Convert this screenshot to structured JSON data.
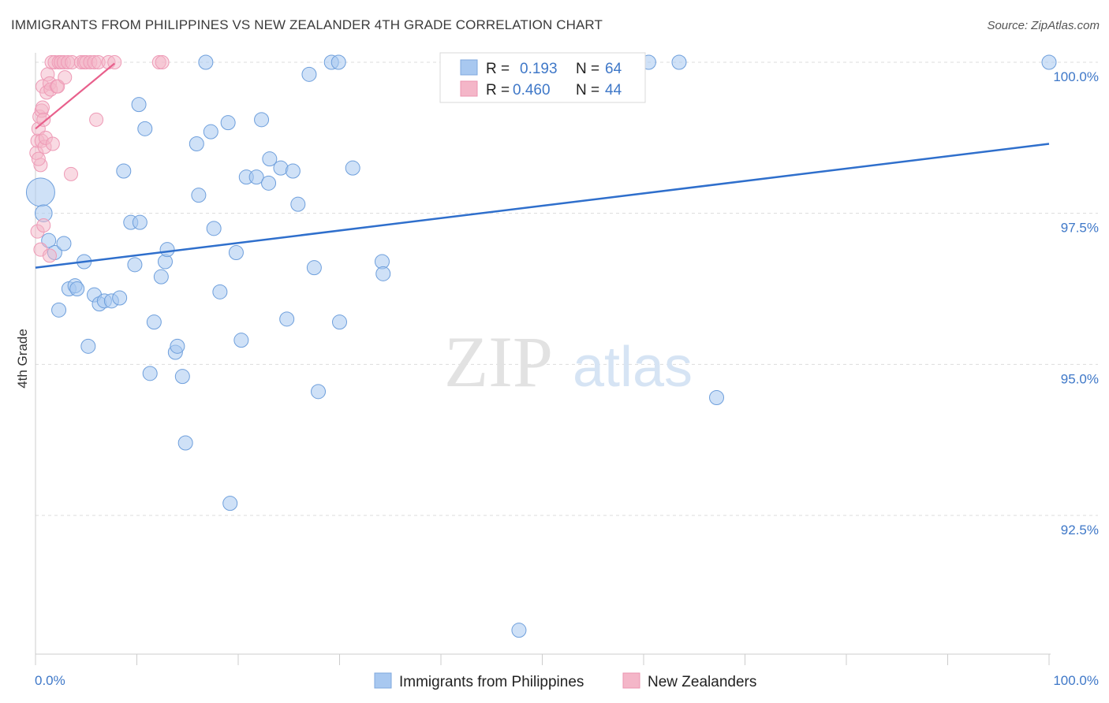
{
  "title": "IMMIGRANTS FROM PHILIPPINES VS NEW ZEALANDER 4TH GRADE CORRELATION CHART",
  "source": "Source: ZipAtlas.com",
  "watermark": {
    "zip": "ZIP",
    "atlas": "atlas"
  },
  "stats_legend": {
    "r_label": "R =",
    "n_label": "N =",
    "rows": [
      {
        "r": "0.193",
        "n": "64",
        "color": "#a8c8f0"
      },
      {
        "r": "0.460",
        "n": "44",
        "color": "#f4b6c8"
      }
    ]
  },
  "bottom_legend": [
    {
      "label": "Immigrants from Philippines",
      "color": "#a8c8f0"
    },
    {
      "label": "New Zealanders",
      "color": "#f4b6c8"
    }
  ],
  "chart_data": {
    "type": "scatter",
    "title": "IMMIGRANTS FROM PHILIPPINES VS NEW ZEALANDER 4TH GRADE CORRELATION CHART",
    "xlabel": "",
    "ylabel": "4th Grade",
    "xlim": [
      0,
      100
    ],
    "ylim": [
      90.5,
      100.25
    ],
    "x_tick_labels": [
      "0.0%",
      "100.0%"
    ],
    "y_ticks": [
      100.0,
      97.5,
      95.0,
      92.5
    ],
    "y_tick_labels": [
      "100.0%",
      "97.5%",
      "95.0%",
      "92.5%"
    ],
    "grid": true,
    "colors": {
      "blue_fill": "#a8c8f0",
      "blue_line": "#2f6fcc",
      "pink_fill": "#f4b6c8",
      "pink_line": "#e8608c",
      "tick_text": "#3f78c8"
    },
    "series": [
      {
        "name": "Immigrants from Philippines",
        "trend": {
          "x": [
            0,
            100
          ],
          "y": [
            96.6,
            98.65
          ]
        },
        "points": [
          [
            0.5,
            97.85,
            1
          ],
          [
            0.8,
            97.5,
            0.6
          ],
          [
            1.3,
            97.05,
            0.5
          ],
          [
            1.9,
            96.85,
            0.5
          ],
          [
            2.8,
            97.0,
            0.5
          ],
          [
            2.3,
            95.9,
            0.5
          ],
          [
            3.3,
            96.25,
            0.5
          ],
          [
            3.9,
            96.3,
            0.5
          ],
          [
            4.1,
            96.25,
            0.5
          ],
          [
            4.8,
            96.7,
            0.5
          ],
          [
            5.2,
            95.3,
            0.5
          ],
          [
            5.8,
            96.15,
            0.5
          ],
          [
            6.3,
            96.0,
            0.5
          ],
          [
            6.8,
            96.05,
            0.5
          ],
          [
            7.5,
            96.05,
            0.5
          ],
          [
            8.3,
            96.1,
            0.5
          ],
          [
            8.7,
            98.2,
            0.5
          ],
          [
            9.4,
            97.35,
            0.5
          ],
          [
            9.8,
            96.65,
            0.5
          ],
          [
            10.3,
            97.35,
            0.5
          ],
          [
            10.2,
            99.3,
            0.5
          ],
          [
            10.8,
            98.9,
            0.5
          ],
          [
            11.3,
            94.85,
            0.5
          ],
          [
            11.7,
            95.7,
            0.5
          ],
          [
            12.4,
            96.45,
            0.5
          ],
          [
            12.8,
            96.7,
            0.5
          ],
          [
            13.0,
            96.9,
            0.5
          ],
          [
            13.8,
            95.2,
            0.5
          ],
          [
            14.0,
            95.3,
            0.5
          ],
          [
            14.5,
            94.8,
            0.5
          ],
          [
            14.8,
            93.7,
            0.5
          ],
          [
            15.9,
            98.65,
            0.5
          ],
          [
            16.1,
            97.8,
            0.5
          ],
          [
            16.8,
            100.0,
            0.5
          ],
          [
            17.3,
            98.85,
            0.5
          ],
          [
            17.6,
            97.25,
            0.5
          ],
          [
            18.2,
            96.2,
            0.5
          ],
          [
            19.0,
            99.0,
            0.5
          ],
          [
            19.2,
            92.7,
            0.5
          ],
          [
            19.8,
            96.85,
            0.5
          ],
          [
            20.3,
            95.4,
            0.5
          ],
          [
            20.8,
            98.1,
            0.5
          ],
          [
            21.8,
            98.1,
            0.5
          ],
          [
            22.3,
            99.05,
            0.5
          ],
          [
            23.0,
            98.0,
            0.5
          ],
          [
            23.1,
            98.4,
            0.5
          ],
          [
            24.2,
            98.25,
            0.5
          ],
          [
            24.8,
            95.75,
            0.5
          ],
          [
            25.4,
            98.2,
            0.5
          ],
          [
            25.9,
            97.65,
            0.5
          ],
          [
            27.0,
            99.8,
            0.5
          ],
          [
            27.5,
            96.6,
            0.5
          ],
          [
            27.9,
            94.55,
            0.5
          ],
          [
            29.2,
            100.0,
            0.5
          ],
          [
            29.9,
            100.0,
            0.5
          ],
          [
            30.0,
            95.7,
            0.5
          ],
          [
            31.3,
            98.25,
            0.5
          ],
          [
            34.2,
            96.7,
            0.5
          ],
          [
            34.3,
            96.5,
            0.5
          ],
          [
            47.7,
            90.6,
            0.5
          ],
          [
            60.5,
            100.0,
            0.5
          ],
          [
            63.5,
            100.0,
            0.5
          ],
          [
            67.2,
            94.45,
            0.5
          ],
          [
            100.0,
            100.0,
            0.5
          ]
        ]
      },
      {
        "name": "New Zealanders",
        "trend": {
          "x": [
            0,
            7.8
          ],
          "y": [
            98.9,
            99.98
          ]
        },
        "points": [
          [
            0.1,
            98.5
          ],
          [
            0.2,
            98.7
          ],
          [
            0.3,
            98.9
          ],
          [
            0.4,
            99.1
          ],
          [
            0.5,
            98.3
          ],
          [
            0.6,
            98.7
          ],
          [
            0.6,
            99.2
          ],
          [
            0.7,
            99.25
          ],
          [
            0.7,
            99.6
          ],
          [
            0.8,
            99.05
          ],
          [
            0.9,
            98.6
          ],
          [
            1.0,
            98.75
          ],
          [
            1.1,
            99.5
          ],
          [
            1.2,
            99.8
          ],
          [
            1.4,
            99.65
          ],
          [
            1.5,
            99.55
          ],
          [
            1.6,
            100.0
          ],
          [
            1.7,
            98.65
          ],
          [
            1.9,
            100.0
          ],
          [
            2.1,
            99.6
          ],
          [
            2.2,
            99.6
          ],
          [
            2.3,
            100.0
          ],
          [
            2.5,
            100.0
          ],
          [
            2.8,
            100.0
          ],
          [
            2.9,
            99.75
          ],
          [
            3.2,
            100.0
          ],
          [
            3.5,
            98.15
          ],
          [
            3.6,
            100.0
          ],
          [
            4.5,
            100.0
          ],
          [
            4.8,
            100.0
          ],
          [
            5.0,
            100.0
          ],
          [
            5.4,
            100.0
          ],
          [
            5.8,
            100.0
          ],
          [
            6.0,
            99.05
          ],
          [
            6.2,
            100.0
          ],
          [
            7.2,
            100.0
          ],
          [
            7.8,
            100.0
          ],
          [
            12.2,
            100.0
          ],
          [
            12.5,
            100.0
          ],
          [
            0.2,
            97.2
          ],
          [
            0.5,
            96.9
          ],
          [
            0.8,
            97.3
          ],
          [
            1.4,
            96.8
          ],
          [
            0.3,
            98.4
          ]
        ]
      }
    ]
  }
}
